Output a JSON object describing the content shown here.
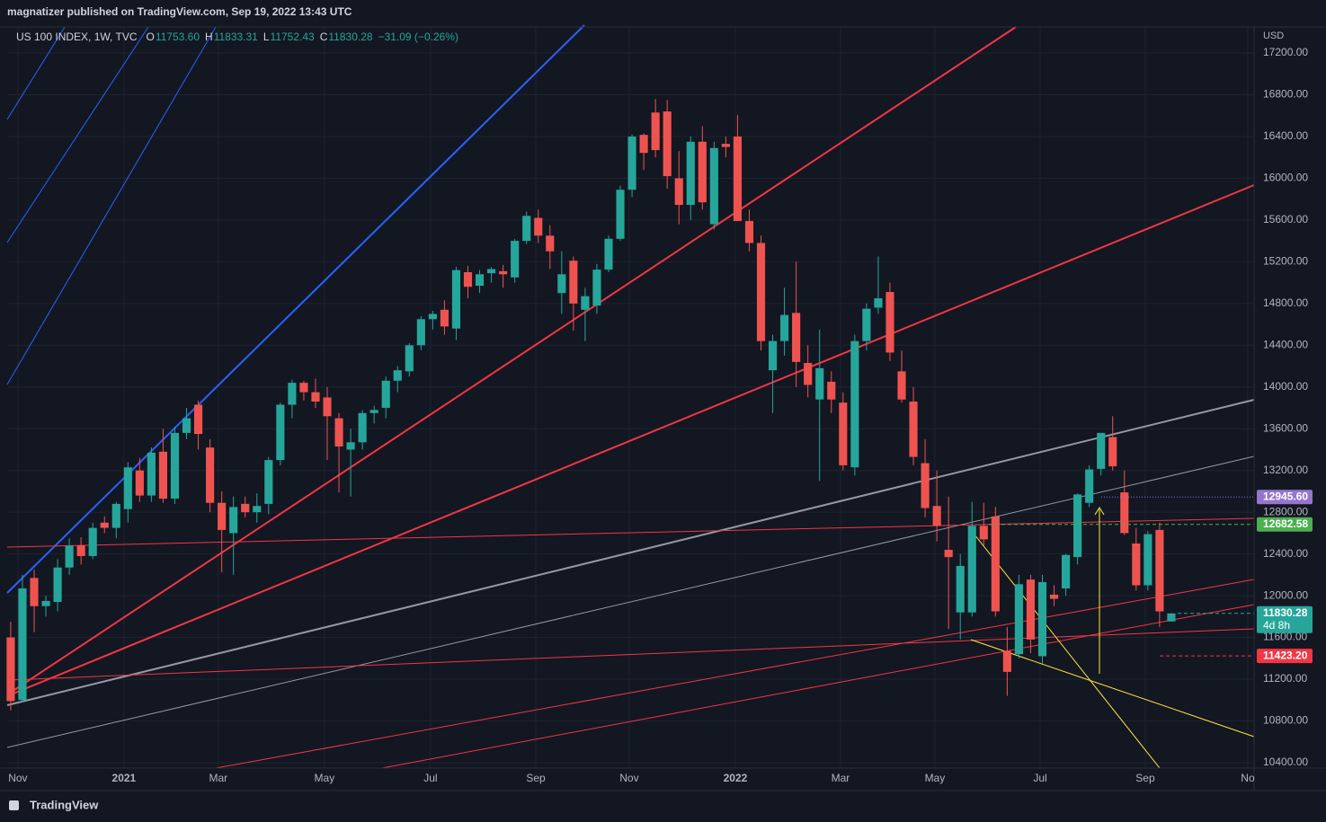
{
  "header": {
    "publisher": "magnatizer published on TradingView.com, Sep 19, 2022 13:43 UTC",
    "brand": "TradingView"
  },
  "chart_data": {
    "type": "candlestick",
    "title": "US 100 INDEX, 1W, TVC",
    "ohlc_legend": [
      {
        "key": "O",
        "value": "11753.60"
      },
      {
        "key": "H",
        "value": "11833.31"
      },
      {
        "key": "L",
        "value": "11752.43"
      },
      {
        "key": "C",
        "value": "11830.28"
      }
    ],
    "change": "−31.09 (−0.26%)",
    "currency": "USD",
    "up_color": "#26a69a",
    "down_color": "#ef5350",
    "open": [
      11600,
      11000,
      12170,
      11900,
      11940,
      12270,
      12480,
      12380,
      12700,
      12650,
      12830,
      13200,
      12960,
      13380,
      12930,
      13560,
      13830,
      13420,
      12890,
      12600,
      12880,
      12800,
      12880,
      13300,
      13830,
      14040,
      13950,
      13900,
      13700,
      13400,
      13470,
      13750,
      13800,
      14060,
      14150,
      14400,
      14650,
      14740,
      14560,
      15100,
      14970,
      15090,
      15110,
      15050,
      15400,
      15620,
      15450,
      14900,
      15210,
      14740,
      14780,
      15125,
      15420,
      15890,
      16416,
      16630,
      16640,
      16000,
      15745,
      16350,
      15560,
      16330,
      16400,
      15590,
      15380,
      14160,
      14440,
      14710,
      14230,
      13880,
      14050,
      13850,
      13230,
      14440,
      14760,
      14910,
      14150,
      13860,
      13270,
      12860,
      12440,
      11840,
      11840,
      12670,
      12760,
      11470,
      11440,
      12155,
      11420,
      12010,
      12070,
      12370,
      12890,
      13215,
      13520,
      12990,
      12500,
      12100,
      12630,
      11753.6
    ],
    "high": [
      11750,
      12200,
      12250,
      12000,
      12350,
      12550,
      12560,
      12700,
      12760,
      12900,
      13280,
      13320,
      13420,
      13600,
      13620,
      13800,
      13870,
      13500,
      13000,
      12950,
      12950,
      12980,
      13330,
      13850,
      14070,
      14060,
      14080,
      14000,
      13750,
      13600,
      13780,
      13820,
      14100,
      14200,
      14420,
      14680,
      14730,
      14830,
      15150,
      15160,
      15120,
      15150,
      15170,
      15420,
      15680,
      15700,
      15550,
      15300,
      15250,
      14950,
      15180,
      15450,
      15930,
      16420,
      16430,
      16760,
      16750,
      16260,
      16400,
      16500,
      16350,
      16400,
      16606,
      15700,
      15450,
      14500,
      14950,
      15200,
      14400,
      14550,
      14150,
      13950,
      14500,
      14800,
      15250,
      15000,
      14350,
      14000,
      13500,
      13200,
      12950,
      12400,
      12900,
      12890,
      12850,
      11700,
      12200,
      12200,
      12200,
      12100,
      12400,
      12980,
      13250,
      13560,
      13720,
      13200,
      12650,
      12620,
      12700,
      11833.31
    ],
    "low": [
      10900,
      10980,
      11650,
      11800,
      11850,
      12200,
      12300,
      12350,
      12600,
      12550,
      12700,
      12900,
      12900,
      12890,
      12880,
      13500,
      13400,
      12800,
      12225,
      12200,
      12750,
      12700,
      12780,
      13250,
      13700,
      13870,
      13800,
      13300,
      12990,
      12950,
      13400,
      13650,
      13700,
      13950,
      14100,
      14350,
      14550,
      14500,
      14450,
      14850,
      14900,
      15000,
      14950,
      15000,
      15370,
      15380,
      15130,
      14700,
      14540,
      14440,
      14700,
      15100,
      15400,
      15820,
      16080,
      16200,
      15900,
      15560,
      15600,
      15700,
      15510,
      16200,
      15590,
      15300,
      14350,
      13750,
      14300,
      14000,
      13900,
      13100,
      13750,
      13200,
      13150,
      14350,
      14700,
      14250,
      13850,
      13250,
      12750,
      12520,
      11680,
      11580,
      11800,
      12480,
      11800,
      11040,
      11400,
      11450,
      11350,
      11900,
      12000,
      12300,
      12850,
      13150,
      13200,
      12580,
      12050,
      12050,
      11700,
      11752.43
    ],
    "close": [
      10990,
      12070,
      11900,
      11950,
      12270,
      12480,
      12380,
      12650,
      12650,
      12880,
      13230,
      12960,
      13370,
      12930,
      13560,
      13700,
      13550,
      12890,
      12630,
      12850,
      12800,
      12860,
      13300,
      13830,
      14040,
      13950,
      13860,
      13720,
      13430,
      13470,
      13750,
      13780,
      14060,
      14160,
      14400,
      14650,
      14700,
      14580,
      15120,
      14960,
      15080,
      15130,
      15080,
      15400,
      15640,
      15450,
      15300,
      15080,
      14800,
      14870,
      15125,
      15420,
      15890,
      16400,
      16243,
      16270,
      16020,
      15745,
      16350,
      15770,
      16290,
      16300,
      15590,
      15380,
      14440,
      14440,
      14690,
      14240,
      14020,
      14180,
      13880,
      13250,
      14440,
      14750,
      14850,
      14330,
      13880,
      13330,
      12840,
      12670,
      12370,
      12285,
      12670,
      12540,
      11850,
      11270,
      12110,
      11580,
      12130,
      11970,
      12390,
      12970,
      13210,
      13560,
      13240,
      12600,
      12100,
      12590,
      11850,
      11830.28
    ],
    "xlim": [
      -0.3,
      106.06
    ],
    "xticks": [
      {
        "value": 0.61,
        "label": "Nov"
      },
      {
        "value": 9.66,
        "label": "2021"
      },
      {
        "value": 17.71,
        "label": "Mar"
      },
      {
        "value": 26.76,
        "label": "May"
      },
      {
        "value": 35.81,
        "label": "Jul"
      },
      {
        "value": 44.79,
        "label": "Sep"
      },
      {
        "value": 52.76,
        "label": "Nov"
      },
      {
        "value": 61.81,
        "label": "2022"
      },
      {
        "value": 70.78,
        "label": "Mar"
      },
      {
        "value": 78.83,
        "label": "May"
      },
      {
        "value": 87.81,
        "label": "Jul"
      },
      {
        "value": 96.78,
        "label": "Sep"
      },
      {
        "value": 105.52,
        "label": "No"
      }
    ],
    "ylim": [
      10348,
      17450
    ],
    "yticks": [
      {
        "value": 10400,
        "label": "10400.00"
      },
      {
        "value": 10800,
        "label": "10800.00"
      },
      {
        "value": 11200,
        "label": "11200.00"
      },
      {
        "value": 11600,
        "label": "11600.00"
      },
      {
        "value": 12000,
        "label": "12000.00"
      },
      {
        "value": 12400,
        "label": "12400.00"
      },
      {
        "value": 12800,
        "label": "12800.00"
      },
      {
        "value": 13200,
        "label": "13200.00"
      },
      {
        "value": 13600,
        "label": "13600.00"
      },
      {
        "value": 14000,
        "label": "14000.00"
      },
      {
        "value": 14400,
        "label": "14400.00"
      },
      {
        "value": 14800,
        "label": "14800.00"
      },
      {
        "value": 15200,
        "label": "15200.00"
      },
      {
        "value": 15600,
        "label": "15600.00"
      },
      {
        "value": 16000,
        "label": "16000.00"
      },
      {
        "value": 16400,
        "label": "16400.00"
      },
      {
        "value": 16800,
        "label": "16800.00"
      },
      {
        "value": 17200,
        "label": "17200.00"
      }
    ],
    "grid": true,
    "price_labels": [
      {
        "value": 12945.6,
        "label": "12945.60",
        "color": "#9575cd"
      },
      {
        "value": 12682.58,
        "label": "12682.58",
        "color": "#4caf50"
      },
      {
        "value": 11830.28,
        "label": "11830.28",
        "sub": "4d 8h",
        "color": "#26a69a"
      },
      {
        "value": 11423.2,
        "label": "11423.20",
        "color": "#f23645"
      }
    ]
  }
}
